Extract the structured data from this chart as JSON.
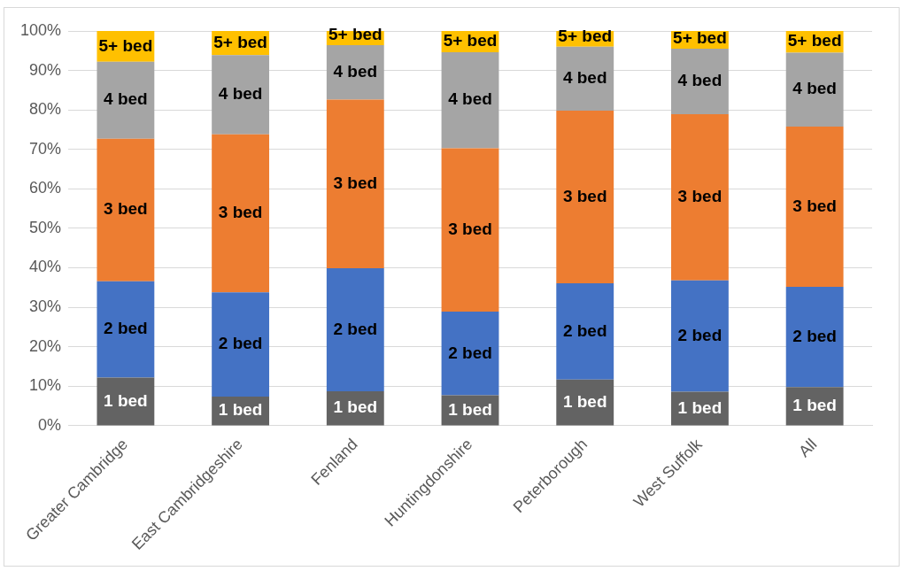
{
  "chart_data": {
    "type": "bar",
    "stacked": true,
    "categories": [
      "Greater Cambridge",
      "East Cambridgeshire",
      "Fenland",
      "Huntingdonshire",
      "Peterborough",
      "West Suffolk",
      "All"
    ],
    "series": [
      {
        "name": "1 bed",
        "color": "#636363",
        "values": [
          12.2,
          7.4,
          8.7,
          7.7,
          11.7,
          8.6,
          9.8
        ]
      },
      {
        "name": "2 bed",
        "color": "#4472c4",
        "values": [
          24.4,
          26.4,
          31.2,
          21.2,
          24.4,
          28.2,
          25.4
        ]
      },
      {
        "name": "3 bed",
        "color": "#ed7d31",
        "values": [
          36.1,
          40.0,
          42.7,
          41.4,
          43.7,
          42.1,
          40.6
        ]
      },
      {
        "name": "4 bed",
        "color": "#a5a5a5",
        "values": [
          19.5,
          20.1,
          13.8,
          24.3,
          16.2,
          16.6,
          18.7
        ]
      },
      {
        "name": "5+ bed",
        "color": "#ffc000",
        "values": [
          7.8,
          6.1,
          3.6,
          5.4,
          4.0,
          4.5,
          5.5
        ]
      }
    ],
    "ylim": [
      0,
      100
    ],
    "yticks": [
      {
        "value": 0,
        "label": "0%"
      },
      {
        "value": 10,
        "label": "10%"
      },
      {
        "value": 20,
        "label": "20%"
      },
      {
        "value": 30,
        "label": "30%"
      },
      {
        "value": 40,
        "label": "40%"
      },
      {
        "value": 50,
        "label": "50%"
      },
      {
        "value": 60,
        "label": "60%"
      },
      {
        "value": 70,
        "label": "70%"
      },
      {
        "value": 80,
        "label": "80%"
      },
      {
        "value": 90,
        "label": "90%"
      },
      {
        "value": 100,
        "label": "100%"
      }
    ],
    "grid": "y",
    "legend": false
  }
}
